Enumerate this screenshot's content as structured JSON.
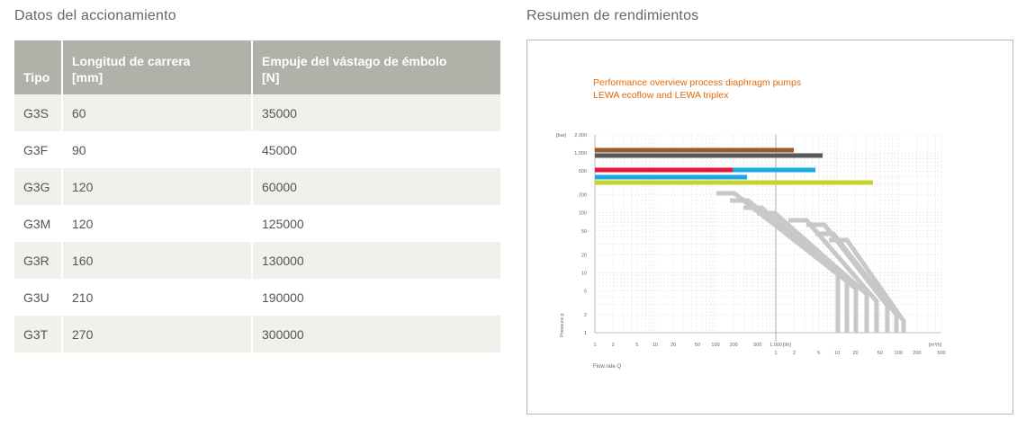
{
  "left": {
    "title": "Datos del accionamiento",
    "headers": [
      "Tipo",
      "Longitud de carrera\n[mm]",
      "Empuje del vástago de émbolo\n[N]"
    ],
    "rows": [
      [
        "G3S",
        "60",
        "35000"
      ],
      [
        "G3F",
        "90",
        "45000"
      ],
      [
        "G3G",
        "120",
        "60000"
      ],
      [
        "G3M",
        "120",
        "125000"
      ],
      [
        "G3R",
        "160",
        "130000"
      ],
      [
        "G3U",
        "210",
        "190000"
      ],
      [
        "G3T",
        "270",
        "300000"
      ]
    ]
  },
  "right": {
    "title": "Resumen de rendimientos",
    "chart_title_line1": "Performance overview process diaphragm pumps",
    "chart_title_line2": "LEWA ecoflow and LEWA triplex",
    "y_unit": "[bar]",
    "y_axis_label": "Pressure p",
    "x_axis_label": "Flow rate Q",
    "y_ticks": [
      "2,000",
      "1,000",
      "500",
      "200",
      "100",
      "50",
      "20",
      "10",
      "5",
      "2",
      "1"
    ],
    "x_ticks_lh": [
      "1",
      "2",
      "5",
      "10",
      "20",
      "50",
      "100",
      "200",
      "500",
      "1,000"
    ],
    "x_unit_lh": "[l/h]",
    "x_ticks_m3h": [
      "1",
      "2",
      "5",
      "10",
      "20",
      "50",
      "100",
      "200",
      "500"
    ],
    "x_unit_m3h": "[m³/h]",
    "band_colors": [
      "#9a5a2a",
      "#555a5e",
      "#e3143d",
      "#1aa9e0",
      "#1aa9e0",
      "#c7d22a"
    ],
    "grey_band_color": "#c8c8c8"
  }
}
